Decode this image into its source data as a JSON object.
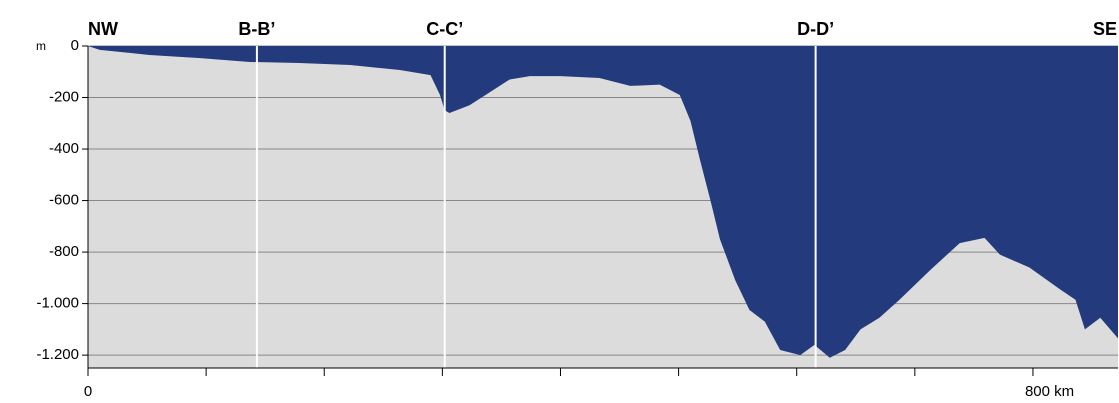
{
  "chart_data": {
    "type": "area",
    "left_label": "NW",
    "right_label": "SE",
    "y_unit": "m",
    "sections": [
      {
        "label": "B-B’",
        "x": 143
      },
      {
        "label": "C-C’",
        "x": 302
      },
      {
        "label": "D-D’",
        "x": 616
      }
    ],
    "x": [
      0,
      10,
      52,
      95,
      137,
      179,
      222,
      264,
      290,
      298,
      302,
      306,
      323,
      340,
      357,
      374,
      400,
      433,
      459,
      484,
      501,
      510,
      518,
      527,
      535,
      548,
      560,
      573,
      586,
      603,
      615,
      628,
      641,
      654,
      670,
      687,
      713,
      738,
      759,
      772,
      797,
      823,
      836,
      844,
      857,
      872
    ],
    "values": [
      0,
      -15,
      -35,
      -47,
      -62,
      -66,
      -74,
      -93,
      -113,
      -190,
      -250,
      -260,
      -230,
      -180,
      -130,
      -117,
      -117,
      -124,
      -155,
      -150,
      -190,
      -290,
      -440,
      -600,
      -750,
      -910,
      -1025,
      -1070,
      -1180,
      -1200,
      -1160,
      -1210,
      -1180,
      -1100,
      -1055,
      -985,
      -870,
      -765,
      -745,
      -810,
      -860,
      -945,
      -985,
      -1100,
      -1055,
      -1135
    ],
    "color": "#233a7d",
    "seabed_color": "#dcdcdc",
    "grid": true,
    "xlim": [
      0,
      872
    ],
    "xticks": [
      0,
      {
        "value": 100,
        "label": null
      },
      {
        "value": 200,
        "label": null
      },
      {
        "value": 300,
        "label": null
      },
      {
        "value": 400,
        "label": null
      },
      {
        "value": 500,
        "label": null
      },
      {
        "value": 600,
        "label": null
      },
      {
        "value": 700,
        "label": null
      },
      {
        "value": 800,
        "label": "800 km"
      }
    ],
    "ylim": [
      -1250,
      0
    ],
    "yticks": [
      0,
      -200,
      -400,
      -600,
      -800,
      {
        "value": -1000,
        "label": "-1.000"
      },
      {
        "value": -1200,
        "label": "-1.200"
      }
    ]
  }
}
